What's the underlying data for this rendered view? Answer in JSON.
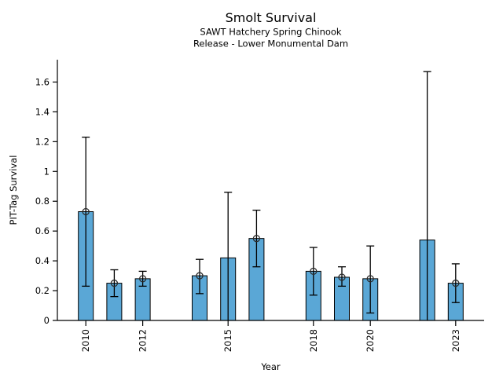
{
  "chart_data": {
    "type": "bar",
    "title": "Smolt Survival",
    "subtitle1": "SAWT Hatchery Spring Chinook",
    "subtitle2": "Release - Lower Monumental Dam",
    "xlabel": "Year",
    "ylabel": "PIT-Tag Survival",
    "xlim": [
      2009,
      2024
    ],
    "ylim": [
      0,
      1.75
    ],
    "x_ticks": [
      2010,
      2012,
      2015,
      2018,
      2020,
      2023
    ],
    "y_ticks": [
      0,
      0.2,
      0.4,
      0.6,
      0.8,
      1,
      1.2,
      1.4,
      1.6
    ],
    "grid": false,
    "legend": "none",
    "bar_color": "#5aa7d6",
    "bar_edge_color": "#000000",
    "errorbar_color": "#000000",
    "marker_edge_color": "#2b2b2b",
    "points": [
      {
        "year": 2010,
        "value": 0.73,
        "lo": 0.23,
        "hi": 1.23,
        "marker": true
      },
      {
        "year": 2011,
        "value": 0.25,
        "lo": 0.16,
        "hi": 0.34,
        "marker": true
      },
      {
        "year": 2012,
        "value": 0.28,
        "lo": 0.23,
        "hi": 0.33,
        "marker": true
      },
      {
        "year": 2014,
        "value": 0.3,
        "lo": 0.18,
        "hi": 0.41,
        "marker": true
      },
      {
        "year": 2015,
        "value": 0.42,
        "lo": 0.0,
        "hi": 0.86,
        "marker": false
      },
      {
        "year": 2016,
        "value": 0.55,
        "lo": 0.36,
        "hi": 0.74,
        "marker": true
      },
      {
        "year": 2018,
        "value": 0.33,
        "lo": 0.17,
        "hi": 0.49,
        "marker": true
      },
      {
        "year": 2019,
        "value": 0.29,
        "lo": 0.23,
        "hi": 0.36,
        "marker": true
      },
      {
        "year": 2020,
        "value": 0.28,
        "lo": 0.05,
        "hi": 0.5,
        "marker": true
      },
      {
        "year": 2022,
        "value": 0.54,
        "lo": 0.0,
        "hi": 1.67,
        "marker": false
      },
      {
        "year": 2023,
        "value": 0.25,
        "lo": 0.12,
        "hi": 0.38,
        "marker": true
      }
    ]
  }
}
